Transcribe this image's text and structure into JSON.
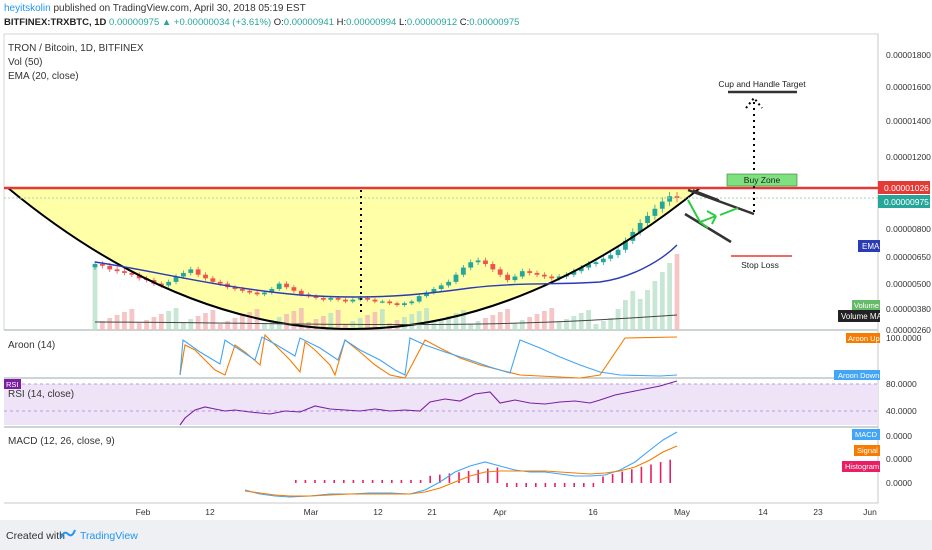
{
  "header": {
    "user": "heyitskolin",
    "published": "published on TradingView.com, April 30, 2018 05:19 EST",
    "symbol": "BITFINEX:TRXBTC, 1D",
    "last": "0.00000975",
    "change": "▲ +0.00000034 (+3.61%)",
    "o_label": "O:",
    "o": "0.00000941",
    "h_label": "H:",
    "h": "0.00000994",
    "l_label": "L:",
    "l": "0.00000912",
    "c_label": "C:",
    "c": "0.00000975"
  },
  "panels": {
    "main_title": "TRON / Bitcoin, 1D, BITFINEX",
    "vol": "Vol (50)",
    "ema": "EMA (20, close)",
    "aroon": "Aroon (14)",
    "rsi": "RSI (14, close)",
    "rsi_tag": "RSI",
    "macd": "MACD (12, 26, close, 9)"
  },
  "annotations": {
    "cup_target": "Cup and Handle Target",
    "buy_zone": "Buy Zone",
    "stop_loss": "Stop Loss"
  },
  "price_axis": {
    "ticks": [
      "0.00001800",
      "0.00001600",
      "0.00001400",
      "0.00001200",
      "0.00000800",
      "0.00000650",
      "0.00000500",
      "0.00000380",
      "0.00000260"
    ],
    "badges": {
      "resistance": "0.00001026",
      "last": "0.00000975",
      "ema": "EMA",
      "volume": "Volume",
      "volume_ma": "Volume MA"
    }
  },
  "aroon_axis": {
    "tick": "100.0000",
    "up_badge": "Aroon Up",
    "down_badge": "Aroon Down"
  },
  "rsi_axis": {
    "ticks": [
      "80.0000",
      "40.0000"
    ]
  },
  "macd_axis": {
    "ticks": [
      "0.0000",
      "0.0000",
      "0.0000"
    ],
    "badges": {
      "macd": "MACD",
      "signal": "Signal",
      "histogram": "Histogram"
    }
  },
  "time_axis": [
    "Feb",
    "12",
    "Mar",
    "12",
    "21",
    "Apr",
    "16",
    "May",
    "14",
    "23",
    "Jun"
  ],
  "footer": {
    "created": "Created with",
    "brand": "TradingView"
  },
  "colors": {
    "up": "#26a69a",
    "down": "#ef5350",
    "cup_fill": "#ffff99",
    "resistance": "#e53935",
    "ema": "#2b3bb3",
    "aroon_up": "#f57c00",
    "aroon_down": "#42a5f5",
    "rsi": "#7b1fa2",
    "macd": "#42a5f5",
    "signal": "#f57c00",
    "histogram": "#e91e63"
  },
  "chart_data": {
    "type": "candlestick",
    "title": "TRON / Bitcoin, 1D, BITFINEX",
    "ylim": [
      2.4e-06,
      1.9e-05
    ],
    "resistance": 1.026e-05,
    "cup_target": 1.57e-05,
    "buy_zone": 1.03e-05,
    "stop_loss": 6.3e-06,
    "close": [
      6.1e-06,
      6e-06,
      5.8e-06,
      5.7e-06,
      5.6e-06,
      5.5e-06,
      5.3e-06,
      5.2e-06,
      5e-06,
      4.9e-06,
      5.1e-06,
      5.4e-06,
      5.6e-06,
      5.8e-06,
      5.5e-06,
      5.3e-06,
      5.1e-06,
      5e-06,
      4.8e-06,
      4.7e-06,
      4.6e-06,
      4.5e-06,
      4.4e-06,
      4.5e-06,
      4.7e-06,
      5e-06,
      4.8e-06,
      4.6e-06,
      4.4e-06,
      4.3e-06,
      4.2e-06,
      4.1e-06,
      4.2e-06,
      4.1e-06,
      4e-06,
      4.1e-06,
      4.2e-06,
      4.1e-06,
      4e-06,
      4e-06,
      3.9e-06,
      3.8e-06,
      3.9e-06,
      4e-06,
      4.3e-06,
      4.5e-06,
      4.7e-06,
      4.9e-06,
      5.1e-06,
      5.5e-06,
      5.9e-06,
      6.2e-06,
      6.3e-06,
      6.1e-06,
      5.8e-06,
      5.5e-06,
      5.2e-06,
      5.4e-06,
      5.7e-06,
      5.6e-06,
      5.5e-06,
      5.4e-06,
      5.3e-06,
      5.4e-06,
      5.5e-06,
      5.7e-06,
      5.9e-06,
      6.1e-06,
      6.2e-06,
      6.4e-06,
      6.6e-06,
      6.9e-06,
      7.4e-06,
      7.9e-06,
      8.4e-06,
      8.8e-06,
      9.2e-06,
      9.6e-06,
      9.9e-06,
      9.8e-06
    ]
  }
}
